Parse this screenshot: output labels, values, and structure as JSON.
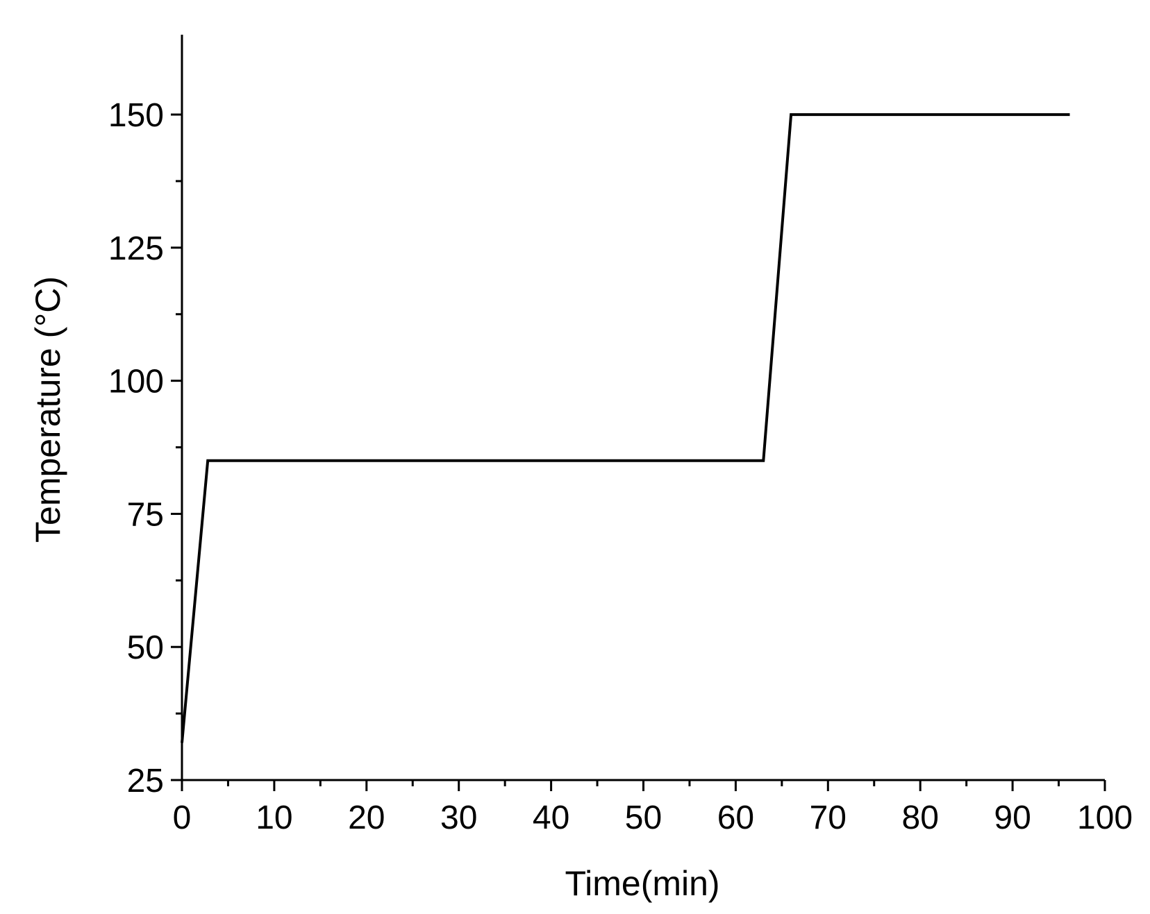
{
  "chart_data": {
    "type": "line",
    "title": "",
    "xlabel": "Time(min)",
    "ylabel": "Temperature (°C)",
    "xlim": [
      0,
      100
    ],
    "ylim": [
      25,
      165
    ],
    "x_ticks": [
      0,
      10,
      20,
      30,
      40,
      50,
      60,
      70,
      80,
      90,
      100
    ],
    "x_minor_ticks": [
      5,
      15,
      25,
      35,
      45,
      55,
      65,
      75,
      85,
      95
    ],
    "y_ticks": [
      25,
      50,
      75,
      100,
      125,
      150
    ],
    "y_minor_ticks": [
      37.5,
      62.5,
      87.5,
      112.5,
      137.5
    ],
    "grid": false,
    "series": [
      {
        "color": "#000000",
        "x": [
          0,
          2.8,
          63,
          66,
          96.2
        ],
        "y": [
          32,
          85,
          85,
          150,
          150
        ]
      }
    ]
  }
}
